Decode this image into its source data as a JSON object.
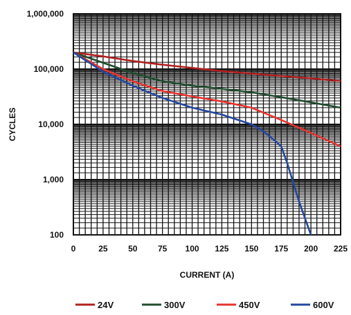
{
  "chart_data": {
    "type": "line",
    "xlabel": "CURRENT (A)",
    "ylabel": "CYCLES",
    "xlim": [
      0,
      225
    ],
    "ylim": [
      100,
      1000000
    ],
    "yscale": "log",
    "grid": true,
    "x_ticks": [
      0,
      25,
      50,
      75,
      100,
      125,
      150,
      175,
      200,
      225
    ],
    "x_tick_labels": [
      "0",
      "25",
      "50",
      "75",
      "100",
      "125",
      "150",
      "175",
      "200",
      "225"
    ],
    "y_ticks": [
      100,
      1000,
      10000,
      100000,
      1000000
    ],
    "y_tick_labels": [
      "100",
      "1,000",
      "10,000",
      "100,000",
      "1,000,000"
    ],
    "legend_position": "bottom",
    "series": [
      {
        "name": "24V",
        "color": "#b32020",
        "x": [
          0,
          25,
          50,
          75,
          100,
          125,
          150,
          175,
          200,
          225
        ],
        "y": [
          200000,
          170000,
          140000,
          120000,
          105000,
          92000,
          83000,
          75000,
          68000,
          61000
        ]
      },
      {
        "name": "300V",
        "color": "#1f4d2e",
        "x": [
          0,
          25,
          50,
          75,
          100,
          125,
          150,
          175,
          200,
          225
        ],
        "y": [
          200000,
          130000,
          85000,
          60000,
          50000,
          44000,
          38000,
          31000,
          25000,
          20000
        ]
      },
      {
        "name": "450V",
        "color": "#e8322f",
        "x": [
          0,
          25,
          50,
          75,
          100,
          125,
          150,
          175,
          200,
          225
        ],
        "y": [
          200000,
          100000,
          60000,
          40000,
          32000,
          26000,
          20000,
          12000,
          7000,
          4000
        ]
      },
      {
        "name": "600V",
        "color": "#2448a0",
        "x": [
          0,
          25,
          50,
          75,
          100,
          125,
          150,
          160,
          170,
          175,
          180,
          190,
          200
        ],
        "y": [
          200000,
          90000,
          50000,
          30000,
          20000,
          15000,
          10000,
          7500,
          5000,
          4000,
          2000,
          400,
          100
        ]
      }
    ]
  }
}
